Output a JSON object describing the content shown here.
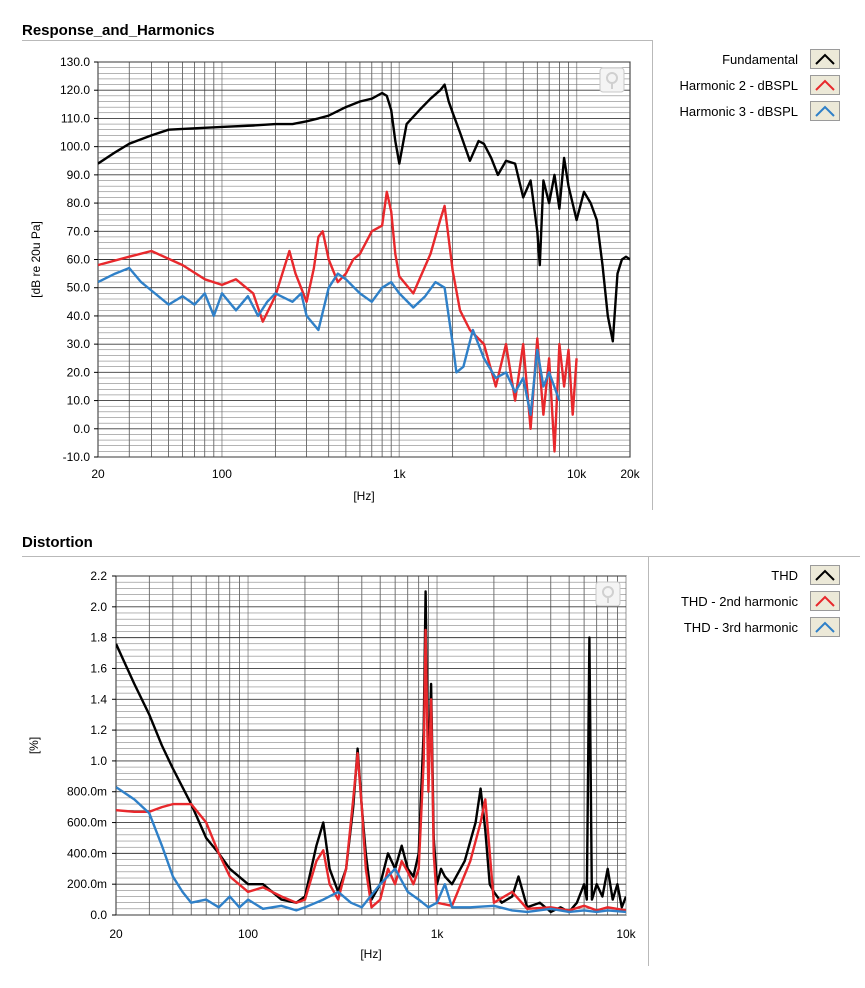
{
  "colors": {
    "black": "#000000",
    "red": "#e8282c",
    "blue": "#2f80c8",
    "grid": "#3a3a3a",
    "legend_bg": "#ece9d8"
  },
  "chart_data": [
    {
      "type": "line",
      "title": "Response_and_Harmonics",
      "xlabel": "[Hz]",
      "ylabel": "[dB re 20u Pa]",
      "xscale": "log",
      "xlim": [
        20,
        20000
      ],
      "ylim": [
        -10,
        130
      ],
      "x_ticks": [
        20,
        100,
        1000,
        10000,
        20000
      ],
      "x_tick_labels": [
        "20",
        "100",
        "1k",
        "10k",
        "20k"
      ],
      "y_ticks": [
        -10,
        0,
        10,
        20,
        30,
        40,
        50,
        60,
        70,
        80,
        90,
        100,
        110,
        120,
        130
      ],
      "y_tick_labels": [
        "-10.0",
        "0.0",
        "10.0",
        "20.0",
        "30.0",
        "40.0",
        "50.0",
        "60.0",
        "70.0",
        "80.0",
        "90.0",
        "100.0",
        "110.0",
        "120.0",
        "130.0"
      ],
      "grid": true,
      "legend_position": "right",
      "series": [
        {
          "name": "Fundamental",
          "color": "#000000",
          "x": [
            20,
            25,
            30,
            40,
            50,
            70,
            100,
            150,
            200,
            250,
            300,
            350,
            400,
            500,
            600,
            700,
            800,
            850,
            900,
            950,
            1000,
            1100,
            1300,
            1500,
            1700,
            1800,
            1900,
            2000,
            2200,
            2500,
            2800,
            3000,
            3300,
            3600,
            4000,
            4500,
            5000,
            5500,
            6000,
            6200,
            6500,
            7000,
            7500,
            8000,
            8500,
            9000,
            10000,
            11000,
            12000,
            13000,
            14000,
            15000,
            16000,
            17000,
            18000,
            19000,
            20000
          ],
          "y": [
            94,
            98,
            101,
            104,
            106,
            106.5,
            107,
            107.5,
            108,
            108,
            109,
            110,
            111,
            114,
            116,
            117,
            119,
            118,
            113,
            102,
            94,
            108,
            113,
            117,
            120,
            122,
            116,
            112,
            105,
            95,
            102,
            101,
            96,
            90,
            95,
            94,
            82,
            88,
            70,
            58,
            88,
            80,
            90,
            78,
            96,
            86,
            74,
            84,
            80,
            74,
            58,
            40,
            31,
            55,
            60,
            61,
            60
          ]
        },
        {
          "name": "Harmonic 2 - dBSPL",
          "color": "#e8282c",
          "x": [
            20,
            30,
            40,
            60,
            80,
            100,
            120,
            150,
            170,
            200,
            240,
            260,
            300,
            330,
            350,
            370,
            400,
            450,
            500,
            550,
            600,
            700,
            800,
            850,
            900,
            950,
            1000,
            1200,
            1500,
            1700,
            1800,
            2000,
            2200,
            2500,
            3000,
            3500,
            4000,
            4500,
            5000,
            5500,
            6000,
            6500,
            7000,
            7500,
            8000,
            8500,
            9000,
            9500,
            10000
          ],
          "y": [
            58,
            61,
            63,
            58,
            53,
            51,
            53,
            48,
            38,
            47,
            63,
            55,
            45,
            57,
            68,
            70,
            60,
            52,
            55,
            60,
            62,
            70,
            72,
            84,
            77,
            62,
            54,
            48,
            62,
            74,
            79,
            56,
            42,
            35,
            30,
            15,
            30,
            10,
            30,
            0,
            32,
            5,
            25,
            -8,
            30,
            15,
            28,
            5,
            25
          ]
        },
        {
          "name": "Harmonic 3 - dBSPL",
          "color": "#2f80c8",
          "x": [
            20,
            25,
            30,
            35,
            40,
            50,
            60,
            70,
            80,
            90,
            100,
            120,
            140,
            160,
            180,
            200,
            250,
            280,
            300,
            350,
            400,
            450,
            500,
            600,
            700,
            800,
            900,
            1000,
            1200,
            1400,
            1600,
            1800,
            2000,
            2100,
            2300,
            2600,
            3000,
            3500,
            4000,
            4500,
            5000,
            5500,
            6000,
            6500,
            7000,
            8000
          ],
          "y": [
            52,
            55,
            57,
            52,
            49,
            44,
            47,
            44,
            48,
            40,
            48,
            42,
            47,
            40,
            45,
            48,
            45,
            48,
            40,
            35,
            50,
            55,
            53,
            48,
            45,
            50,
            52,
            48,
            43,
            47,
            52,
            50,
            30,
            20,
            22,
            35,
            25,
            18,
            20,
            13,
            18,
            5,
            28,
            15,
            20,
            10
          ]
        }
      ]
    },
    {
      "type": "line",
      "title": "Distortion",
      "xlabel": "[Hz]",
      "ylabel": "[%]",
      "xscale": "log",
      "xlim": [
        20,
        10000
      ],
      "ylim": [
        0,
        2.2
      ],
      "x_ticks": [
        20,
        100,
        1000,
        10000
      ],
      "x_tick_labels": [
        "20",
        "100",
        "1k",
        "10k"
      ],
      "y_ticks": [
        0,
        0.2,
        0.4,
        0.6,
        0.8,
        1.0,
        1.2,
        1.4,
        1.6,
        1.8,
        2.0,
        2.2
      ],
      "y_tick_labels": [
        "0.0",
        "200.0m",
        "400.0m",
        "600.0m",
        "800.0m",
        "1.0",
        "1.2",
        "1.4",
        "1.6",
        "1.8",
        "2.0",
        "2.2"
      ],
      "grid": true,
      "legend_position": "right",
      "series": [
        {
          "name": "THD",
          "color": "#000000",
          "x": [
            20,
            25,
            30,
            35,
            40,
            50,
            60,
            70,
            80,
            100,
            120,
            150,
            180,
            200,
            230,
            250,
            270,
            300,
            330,
            360,
            380,
            400,
            420,
            450,
            500,
            550,
            600,
            650,
            700,
            750,
            800,
            850,
            870,
            900,
            930,
            960,
            1000,
            1050,
            1100,
            1200,
            1400,
            1600,
            1700,
            1800,
            1900,
            2000,
            2200,
            2500,
            2700,
            3000,
            3500,
            4000,
            4500,
            5000,
            5500,
            6000,
            6200,
            6400,
            6600,
            7000,
            7500,
            8000,
            8500,
            9000,
            9500,
            10000
          ],
          "y": [
            1.76,
            1.5,
            1.3,
            1.1,
            0.95,
            0.72,
            0.5,
            0.4,
            0.3,
            0.2,
            0.2,
            0.1,
            0.08,
            0.12,
            0.45,
            0.6,
            0.3,
            0.15,
            0.3,
            0.7,
            1.08,
            0.7,
            0.4,
            0.1,
            0.2,
            0.4,
            0.3,
            0.45,
            0.3,
            0.25,
            0.4,
            1.2,
            2.1,
            0.9,
            1.5,
            0.5,
            0.2,
            0.3,
            0.25,
            0.2,
            0.35,
            0.6,
            0.82,
            0.55,
            0.2,
            0.15,
            0.08,
            0.12,
            0.25,
            0.05,
            0.08,
            0.02,
            0.05,
            0.02,
            0.08,
            0.2,
            0.1,
            1.8,
            0.1,
            0.2,
            0.12,
            0.3,
            0.1,
            0.2,
            0.05,
            0.12
          ]
        },
        {
          "name": "THD - 2nd harmonic",
          "color": "#e8282c",
          "x": [
            20,
            25,
            30,
            35,
            40,
            50,
            60,
            70,
            80,
            100,
            120,
            150,
            180,
            200,
            230,
            250,
            270,
            300,
            330,
            360,
            380,
            400,
            420,
            450,
            500,
            550,
            600,
            650,
            700,
            750,
            800,
            850,
            870,
            900,
            930,
            960,
            1000,
            1200,
            1500,
            1700,
            1800,
            2000,
            2500,
            3000,
            4000,
            5000,
            6000,
            7000,
            8000,
            10000
          ],
          "y": [
            0.68,
            0.67,
            0.67,
            0.7,
            0.72,
            0.72,
            0.6,
            0.4,
            0.25,
            0.15,
            0.18,
            0.12,
            0.08,
            0.1,
            0.35,
            0.42,
            0.2,
            0.1,
            0.3,
            0.75,
            1.05,
            0.7,
            0.3,
            0.05,
            0.1,
            0.3,
            0.2,
            0.35,
            0.28,
            0.2,
            0.3,
            1.0,
            1.85,
            0.8,
            1.4,
            0.4,
            0.08,
            0.06,
            0.35,
            0.6,
            0.75,
            0.08,
            0.15,
            0.04,
            0.05,
            0.03,
            0.06,
            0.03,
            0.05,
            0.03
          ]
        },
        {
          "name": "THD - 3rd harmonic",
          "color": "#2f80c8",
          "x": [
            20,
            25,
            30,
            35,
            40,
            45,
            50,
            60,
            70,
            80,
            90,
            100,
            120,
            150,
            180,
            200,
            250,
            300,
            350,
            400,
            500,
            600,
            700,
            800,
            900,
            1000,
            1100,
            1200,
            1500,
            2000,
            2500,
            3000,
            4000,
            5000,
            6000,
            7000,
            8000,
            10000
          ],
          "y": [
            0.83,
            0.75,
            0.66,
            0.45,
            0.25,
            0.15,
            0.08,
            0.1,
            0.05,
            0.12,
            0.05,
            0.1,
            0.04,
            0.06,
            0.03,
            0.05,
            0.1,
            0.15,
            0.08,
            0.05,
            0.2,
            0.3,
            0.15,
            0.1,
            0.05,
            0.08,
            0.2,
            0.05,
            0.05,
            0.06,
            0.03,
            0.02,
            0.04,
            0.02,
            0.03,
            0.02,
            0.03,
            0.02
          ]
        }
      ]
    }
  ]
}
